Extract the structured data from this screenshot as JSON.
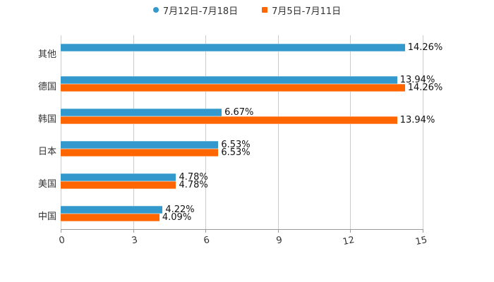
{
  "chart_data": {
    "type": "bar",
    "orientation": "horizontal",
    "title": "",
    "xlabel": "",
    "ylabel": "",
    "categories": [
      "其他",
      "德国",
      "韩国",
      "日本",
      "美国",
      "中国"
    ],
    "series": [
      {
        "name": "7月12日-7月18日",
        "color": "#3398cc",
        "values": [
          14.26,
          13.94,
          6.67,
          6.53,
          4.78,
          4.22
        ],
        "labels": [
          "14.26%",
          "13.94%",
          "6.67%",
          "6.53%",
          "4.78%",
          "4.22%"
        ]
      },
      {
        "name": "7月5日-7月11日",
        "color": "#ff6600",
        "values": [
          null,
          14.26,
          13.94,
          6.53,
          4.78,
          4.09
        ],
        "labels": [
          null,
          "14.26%",
          "13.94%",
          "6.53%",
          "4.78%",
          "4.09%"
        ]
      }
    ],
    "xlim": [
      0,
      15
    ],
    "xticks": [
      "0",
      "3",
      "6",
      "9",
      "12",
      "15"
    ],
    "grid": true,
    "legend_position": "top"
  },
  "legend": {
    "items": [
      {
        "label": "7月12日-7月18日",
        "color": "#3398cc",
        "marker": "circle"
      },
      {
        "label": "7月5日-7月11日",
        "color": "#ff6600",
        "marker": "square"
      }
    ]
  },
  "axis": {
    "ticks": [
      "0",
      "3",
      "6",
      "9",
      "12",
      "15"
    ]
  },
  "rows": [
    {
      "label": "其他",
      "blue_label": "14.26%",
      "orange_label": null
    },
    {
      "label": "德国",
      "blue_label": "13.94%",
      "orange_label": "14.26%"
    },
    {
      "label": "韩国",
      "blue_label": "6.67%",
      "orange_label": "13.94%"
    },
    {
      "label": "日本",
      "blue_label": "6.53%",
      "orange_label": "6.53%"
    },
    {
      "label": "美国",
      "blue_label": "4.78%",
      "orange_label": "4.78%"
    },
    {
      "label": "中国",
      "blue_label": "4.22%",
      "orange_label": "4.09%"
    }
  ]
}
